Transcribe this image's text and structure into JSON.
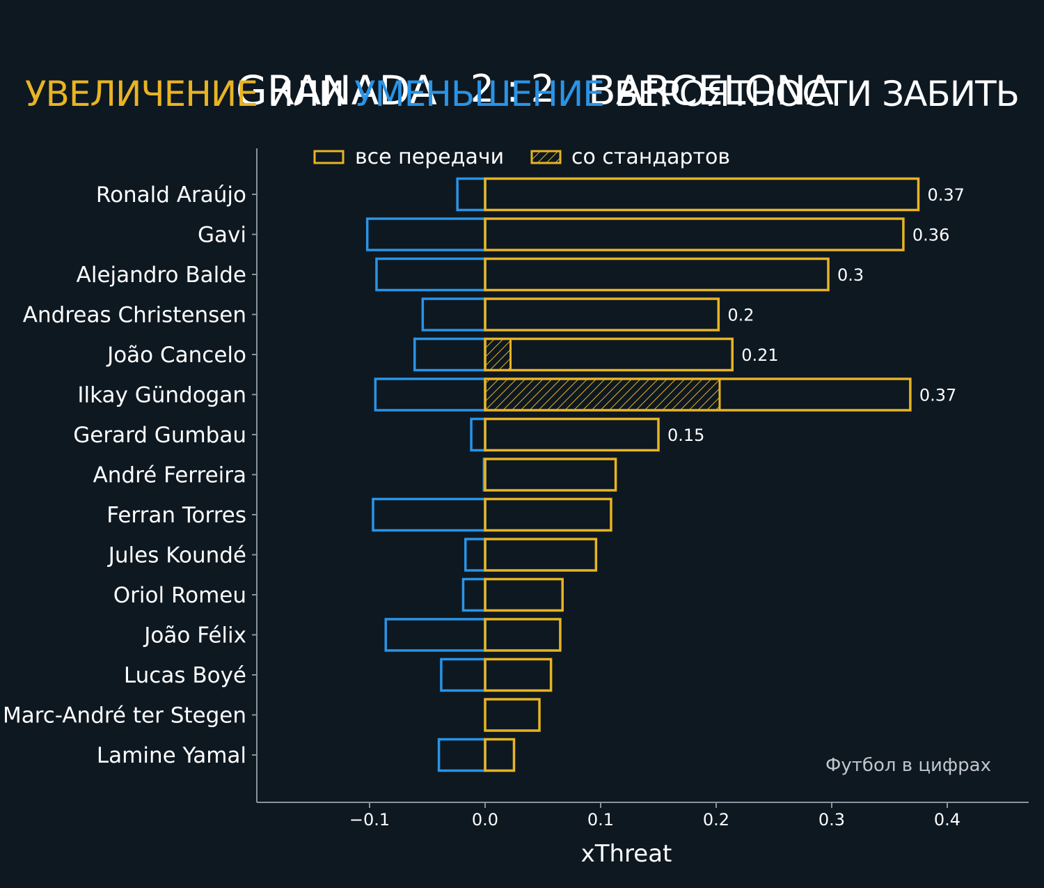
{
  "header": {
    "home_team": "GRANADA",
    "score": "2 : 2",
    "away_team": "BARCELONA",
    "subtitle_up": "УВЕЛИЧЕНИЕ",
    "subtitle_or": "ИЛИ",
    "subtitle_down": "УМЕНЬШЕНИЕ",
    "subtitle_rest": "ВЕРОЯТНОСТИ ЗАБИТЬ"
  },
  "legend": {
    "all_passes": "все передачи",
    "set_pieces": "со стандартов"
  },
  "watermark": "Футбол в цифрах",
  "colors": {
    "background": "#0e1821",
    "increase": "#e8b423",
    "decrease": "#2a94e6",
    "axis": "#8a949c"
  },
  "chart_data": {
    "type": "bar",
    "orientation": "horizontal",
    "title": "GRANADA 2 : 2 BARCELONA",
    "subtitle": "УВЕЛИЧЕНИЕ ИЛИ УМЕНЬШЕНИЕ ВЕРОЯТНОСТИ ЗАБИТЬ",
    "xlabel": "xThreat",
    "xlim": [
      -0.2,
      0.47
    ],
    "xticks": [
      -0.1,
      0.0,
      0.1,
      0.2,
      0.3,
      0.4
    ],
    "xtick_labels": [
      "−0.1",
      "0.0",
      "0.1",
      "0.2",
      "0.3",
      "0.4"
    ],
    "categories": [
      "Ronald Araújo",
      "Gavi",
      "Alejandro Balde",
      "Andreas Christensen",
      "João Cancelo",
      "Ilkay Gündogan",
      "Gerard Gumbau",
      "André Ferreira",
      "Ferran Torres",
      "Jules Koundé",
      "Oriol Romeu",
      "João Félix",
      "Lucas Boyé",
      "Marc-André ter Stegen",
      "Lamine Yamal"
    ],
    "series": [
      {
        "name": "positive xThreat (все передачи)",
        "values": [
          0.375,
          0.362,
          0.297,
          0.202,
          0.214,
          0.368,
          0.15,
          0.113,
          0.109,
          0.096,
          0.067,
          0.065,
          0.057,
          0.047,
          0.025
        ]
      },
      {
        "name": "negative xThreat",
        "values": [
          -0.024,
          -0.102,
          -0.094,
          -0.054,
          -0.061,
          -0.095,
          -0.012,
          -0.001,
          -0.097,
          -0.017,
          -0.019,
          -0.086,
          -0.038,
          0.0,
          -0.04
        ]
      },
      {
        "name": "set-piece xThreat (со стандартов)",
        "values": [
          0,
          0,
          0,
          0,
          0.022,
          0.203,
          0,
          0,
          0,
          0,
          0,
          0,
          0,
          0,
          0
        ]
      }
    ],
    "data_labels": [
      "0.37",
      "0.36",
      "0.3",
      "0.2",
      "0.21",
      "0.37",
      "0.15",
      "",
      "",
      "",
      "",
      "",
      "",
      "",
      ""
    ],
    "legend_position": "top"
  }
}
